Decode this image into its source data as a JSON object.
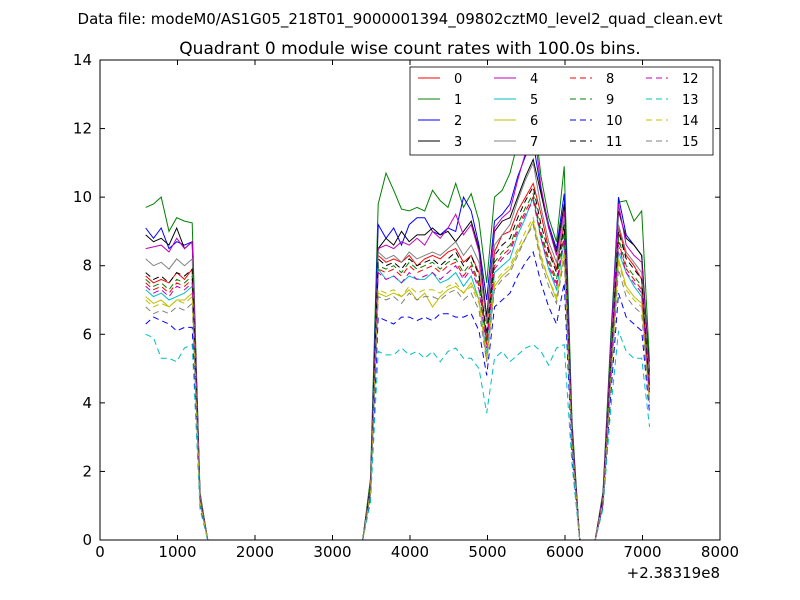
{
  "suptitle": "Data file: modeM0/AS1G05_218T01_9000001394_09802cztM0_level2_quad_clean.evt",
  "chart_data": {
    "type": "line",
    "title": "Quadrant 0 module wise count rates with 100.0s bins.",
    "xlabel": "",
    "ylabel": "",
    "x_offset_label": "+2.38319e8",
    "xlim": [
      0,
      8000
    ],
    "ylim": [
      0,
      14
    ],
    "xticks": [
      "0",
      "1000",
      "2000",
      "3000",
      "4000",
      "5000",
      "6000",
      "7000",
      "8000"
    ],
    "yticks": [
      "0",
      "2",
      "4",
      "6",
      "8",
      "10",
      "12",
      "14"
    ],
    "grid": false,
    "legend": "top-right",
    "x": [
      590,
      690,
      790,
      890,
      990,
      1090,
      1190,
      1290,
      1390,
      1490,
      1590,
      1690,
      1790,
      1890,
      1990,
      2090,
      2190,
      2290,
      2390,
      2490,
      2590,
      2690,
      2790,
      2890,
      2990,
      3090,
      3190,
      3290,
      3390,
      3490,
      3590,
      3690,
      3790,
      3890,
      3990,
      4090,
      4190,
      4290,
      4390,
      4490,
      4590,
      4690,
      4790,
      4890,
      4990,
      5090,
      5190,
      5290,
      5390,
      5490,
      5590,
      5690,
      5790,
      5890,
      5990,
      6090,
      6190,
      6290,
      6390,
      6490,
      6590,
      6690,
      6790,
      6890,
      6990,
      7090
    ],
    "series": [
      {
        "name": "0",
        "color": "#ff0000",
        "dashed": false,
        "values": [
          7.7,
          7.5,
          7.6,
          7.5,
          7.8,
          7.6,
          7.9,
          1.2,
          0,
          0,
          0,
          0,
          0,
          0,
          0,
          0,
          0,
          0,
          0,
          0,
          0,
          0,
          0,
          0,
          0,
          0,
          0,
          0,
          0,
          1.5,
          8.3,
          8.1,
          8.2,
          8.1,
          8.3,
          8.0,
          8.2,
          8.3,
          8.2,
          8.4,
          8.5,
          8.1,
          8.3,
          7.8,
          5.8,
          8.4,
          8.9,
          9.0,
          9.6,
          10.0,
          10.4,
          9.5,
          8.5,
          7.9,
          9.2,
          3.0,
          0,
          0,
          0,
          1.2,
          5.2,
          9.1,
          8.3,
          8.0,
          7.6,
          4.5
        ]
      },
      {
        "name": "1",
        "color": "#008000",
        "dashed": false,
        "values": [
          9.7,
          9.8,
          10.0,
          9.0,
          9.4,
          9.3,
          9.25,
          1.4,
          0,
          0,
          0,
          0,
          0,
          0,
          0,
          0,
          0,
          0,
          0,
          0,
          0,
          0,
          0,
          0,
          0,
          0,
          0,
          0,
          0,
          1.8,
          9.8,
          10.7,
          10.2,
          9.65,
          9.6,
          9.7,
          9.6,
          10.2,
          9.9,
          9.7,
          10.4,
          9.7,
          10.1,
          9.3,
          7.5,
          10.0,
          10.2,
          10.7,
          11.6,
          12.1,
          12.6,
          10.6,
          9.4,
          8.7,
          10.9,
          3.5,
          0,
          0,
          0,
          1.4,
          5.9,
          9.85,
          9.9,
          9.3,
          9.6,
          5.2
        ]
      },
      {
        "name": "2",
        "color": "#0000ff",
        "dashed": false,
        "values": [
          9.1,
          8.8,
          9.1,
          8.5,
          8.7,
          8.6,
          8.7,
          1.3,
          0,
          0,
          0,
          0,
          0,
          0,
          0,
          0,
          0,
          0,
          0,
          0,
          0,
          0,
          0,
          0,
          0,
          0,
          0,
          0,
          0,
          1.6,
          9.2,
          8.8,
          9.1,
          8.6,
          9.2,
          9.4,
          9.4,
          9.0,
          8.9,
          9.1,
          9.0,
          10.0,
          9.6,
          8.6,
          7.0,
          9.3,
          9.5,
          9.8,
          10.6,
          11.2,
          11.6,
          10.2,
          9.2,
          8.5,
          10.1,
          3.3,
          0,
          0,
          0,
          1.3,
          5.6,
          10.0,
          8.9,
          8.6,
          8.3,
          4.8
        ]
      },
      {
        "name": "3",
        "color": "#000000",
        "dashed": false,
        "values": [
          8.9,
          8.7,
          8.8,
          8.6,
          9.1,
          8.5,
          8.7,
          1.3,
          0,
          0,
          0,
          0,
          0,
          0,
          0,
          0,
          0,
          0,
          0,
          0,
          0,
          0,
          0,
          0,
          0,
          0,
          0,
          0,
          0,
          1.6,
          8.5,
          8.8,
          8.6,
          9.0,
          8.7,
          8.9,
          8.9,
          9.1,
          8.9,
          9.0,
          8.7,
          9.0,
          9.3,
          8.5,
          6.5,
          9.0,
          9.3,
          9.4,
          10.0,
          10.6,
          11.1,
          10.1,
          9.1,
          8.4,
          9.8,
          3.2,
          0,
          0,
          0,
          1.3,
          5.5,
          9.6,
          8.8,
          8.6,
          8.3,
          4.9
        ]
      },
      {
        "name": "4",
        "color": "#bf00bf",
        "dashed": false,
        "values": [
          8.5,
          8.55,
          8.6,
          8.4,
          8.8,
          8.5,
          8.7,
          1.3,
          0,
          0,
          0,
          0,
          0,
          0,
          0,
          0,
          0,
          0,
          0,
          0,
          0,
          0,
          0,
          0,
          0,
          0,
          0,
          0,
          0,
          1.6,
          8.5,
          8.6,
          8.5,
          8.7,
          8.6,
          8.8,
          8.6,
          9.0,
          8.8,
          9.1,
          9.5,
          8.9,
          9.2,
          8.4,
          6.3,
          9.1,
          9.4,
          9.6,
          10.5,
          11.3,
          12.2,
          10.3,
          9.1,
          8.3,
          9.6,
          3.2,
          0,
          0,
          0,
          1.3,
          5.5,
          9.8,
          8.6,
          8.3,
          8.1,
          4.7
        ]
      },
      {
        "name": "5",
        "color": "#00bfbf",
        "dashed": false,
        "values": [
          7.3,
          7.1,
          7.2,
          7.0,
          7.1,
          7.2,
          7.4,
          1.2,
          0,
          0,
          0,
          0,
          0,
          0,
          0,
          0,
          0,
          0,
          0,
          0,
          0,
          0,
          0,
          0,
          0,
          0,
          0,
          0,
          0,
          1.4,
          7.9,
          7.6,
          7.7,
          7.5,
          7.7,
          7.6,
          7.6,
          7.8,
          7.5,
          7.6,
          7.8,
          7.4,
          7.7,
          7.0,
          5.4,
          7.8,
          8.0,
          8.2,
          8.9,
          9.4,
          10.0,
          8.8,
          7.9,
          7.3,
          8.7,
          2.9,
          0,
          0,
          0,
          1.1,
          4.8,
          8.4,
          7.8,
          7.4,
          7.1,
          4.1
        ]
      },
      {
        "name": "6",
        "color": "#bfbf00",
        "dashed": false,
        "values": [
          7.1,
          6.9,
          7.0,
          6.8,
          7.0,
          7.0,
          7.2,
          1.1,
          0,
          0,
          0,
          0,
          0,
          0,
          0,
          0,
          0,
          0,
          0,
          0,
          0,
          0,
          0,
          0,
          0,
          0,
          0,
          0,
          0,
          1.4,
          7.2,
          7.1,
          7.2,
          7.1,
          7.3,
          7.0,
          7.2,
          6.8,
          7.1,
          7.3,
          7.4,
          7.2,
          7.5,
          7.0,
          5.2,
          7.4,
          7.7,
          7.9,
          8.4,
          8.8,
          9.3,
          8.2,
          7.6,
          7.0,
          8.4,
          2.8,
          0,
          0,
          0,
          1.1,
          4.6,
          8.2,
          7.4,
          7.1,
          6.9,
          4.0
        ]
      },
      {
        "name": "7",
        "color": "#808080",
        "dashed": false,
        "values": [
          8.2,
          8.0,
          8.1,
          7.9,
          8.2,
          8.0,
          8.2,
          1.3,
          0,
          0,
          0,
          0,
          0,
          0,
          0,
          0,
          0,
          0,
          0,
          0,
          0,
          0,
          0,
          0,
          0,
          0,
          0,
          0,
          0,
          1.5,
          8.4,
          8.2,
          8.3,
          8.1,
          8.4,
          8.2,
          8.3,
          8.4,
          8.3,
          8.5,
          8.7,
          8.3,
          8.6,
          8.1,
          6.3,
          8.6,
          8.9,
          9.2,
          9.9,
          10.5,
          11.0,
          9.7,
          8.7,
          8.1,
          9.4,
          3.1,
          0,
          0,
          0,
          1.2,
          5.2,
          9.2,
          8.4,
          8.1,
          7.8,
          4.6
        ]
      },
      {
        "name": "8",
        "color": "#ff0000",
        "dashed": true,
        "values": [
          7.5,
          7.3,
          7.4,
          7.2,
          7.5,
          7.4,
          7.6,
          1.2,
          0,
          0,
          0,
          0,
          0,
          0,
          0,
          0,
          0,
          0,
          0,
          0,
          0,
          0,
          0,
          0,
          0,
          0,
          0,
          0,
          0,
          1.4,
          7.9,
          7.8,
          7.9,
          7.7,
          8.0,
          7.8,
          7.9,
          8.0,
          7.8,
          8.0,
          8.1,
          7.7,
          8.0,
          7.4,
          5.7,
          8.0,
          8.3,
          8.5,
          9.1,
          9.6,
          10.0,
          8.9,
          8.1,
          7.5,
          8.9,
          2.9,
          0,
          0,
          0,
          1.1,
          5.0,
          8.7,
          7.9,
          7.6,
          7.3,
          4.3
        ]
      },
      {
        "name": "9",
        "color": "#008000",
        "dashed": true,
        "values": [
          7.6,
          7.4,
          7.5,
          7.3,
          7.6,
          7.5,
          7.7,
          1.2,
          0,
          0,
          0,
          0,
          0,
          0,
          0,
          0,
          0,
          0,
          0,
          0,
          0,
          0,
          0,
          0,
          0,
          0,
          0,
          0,
          0,
          1.5,
          8.0,
          7.9,
          8.0,
          7.8,
          8.1,
          7.9,
          8.0,
          8.1,
          7.9,
          8.1,
          8.2,
          7.8,
          8.1,
          7.5,
          5.8,
          8.1,
          8.4,
          8.6,
          9.2,
          9.7,
          10.1,
          9.0,
          8.2,
          7.6,
          9.0,
          3.0,
          0,
          0,
          0,
          1.1,
          5.0,
          8.8,
          8.0,
          7.7,
          7.4,
          4.3
        ]
      },
      {
        "name": "10",
        "color": "#0000ff",
        "dashed": true,
        "values": [
          6.3,
          6.5,
          6.4,
          6.3,
          6.1,
          6.2,
          6.2,
          1.0,
          0,
          0,
          0,
          0,
          0,
          0,
          0,
          0,
          0,
          0,
          0,
          0,
          0,
          0,
          0,
          0,
          0,
          0,
          0,
          0,
          0,
          1.2,
          6.5,
          6.4,
          6.3,
          6.5,
          6.5,
          6.4,
          6.5,
          6.4,
          6.6,
          6.6,
          6.5,
          6.5,
          6.6,
          6.1,
          4.8,
          6.8,
          7.0,
          7.2,
          7.7,
          8.1,
          8.4,
          7.5,
          6.8,
          6.3,
          7.5,
          2.5,
          0,
          0,
          0,
          1.0,
          4.2,
          7.2,
          6.5,
          6.3,
          6.1,
          3.7
        ]
      },
      {
        "name": "11",
        "color": "#000000",
        "dashed": true,
        "values": [
          7.8,
          7.6,
          7.7,
          7.5,
          7.8,
          7.7,
          7.9,
          1.2,
          0,
          0,
          0,
          0,
          0,
          0,
          0,
          0,
          0,
          0,
          0,
          0,
          0,
          0,
          0,
          0,
          0,
          0,
          0,
          0,
          0,
          1.5,
          8.2,
          8.0,
          8.1,
          7.9,
          8.2,
          8.0,
          8.1,
          8.2,
          8.0,
          8.2,
          8.4,
          8.0,
          8.3,
          7.7,
          6.0,
          8.3,
          8.6,
          8.8,
          9.4,
          9.9,
          10.3,
          9.2,
          8.4,
          7.8,
          9.2,
          3.0,
          0,
          0,
          0,
          1.2,
          5.1,
          9.0,
          8.2,
          7.9,
          7.6,
          4.4
        ]
      },
      {
        "name": "12",
        "color": "#bf00bf",
        "dashed": true,
        "values": [
          7.4,
          7.2,
          7.3,
          7.1,
          7.4,
          7.3,
          7.5,
          1.2,
          0,
          0,
          0,
          0,
          0,
          0,
          0,
          0,
          0,
          0,
          0,
          0,
          0,
          0,
          0,
          0,
          0,
          0,
          0,
          0,
          0,
          1.4,
          7.8,
          7.6,
          7.7,
          7.5,
          7.8,
          7.6,
          7.7,
          7.8,
          7.6,
          7.8,
          8.0,
          7.6,
          7.9,
          7.3,
          5.6,
          7.9,
          8.2,
          8.4,
          9.0,
          9.5,
          9.9,
          8.8,
          8.0,
          7.4,
          8.8,
          2.9,
          0,
          0,
          0,
          1.1,
          4.9,
          8.6,
          7.8,
          7.5,
          7.2,
          4.2
        ]
      },
      {
        "name": "13",
        "color": "#00bfbf",
        "dashed": true,
        "values": [
          6.0,
          5.9,
          5.3,
          5.3,
          5.2,
          5.6,
          5.7,
          0.9,
          0,
          0,
          0,
          0,
          0,
          0,
          0,
          0,
          0,
          0,
          0,
          0,
          0,
          0,
          0,
          0,
          0,
          0,
          0,
          0,
          0,
          1.1,
          5.5,
          5.4,
          5.4,
          5.6,
          5.4,
          5.5,
          5.3,
          5.5,
          5.2,
          5.5,
          5.6,
          5.3,
          5.3,
          5.0,
          3.7,
          5.3,
          5.5,
          5.2,
          5.4,
          5.6,
          5.7,
          5.5,
          5.1,
          5.6,
          5.7,
          2.2,
          0,
          0,
          0,
          0.9,
          3.8,
          6.1,
          5.5,
          5.3,
          5.3,
          3.3
        ]
      },
      {
        "name": "14",
        "color": "#bfbf00",
        "dashed": true,
        "values": [
          7.0,
          6.8,
          6.9,
          6.8,
          7.0,
          6.9,
          7.1,
          1.1,
          0,
          0,
          0,
          0,
          0,
          0,
          0,
          0,
          0,
          0,
          0,
          0,
          0,
          0,
          0,
          0,
          0,
          0,
          0,
          0,
          0,
          1.4,
          7.3,
          7.2,
          7.3,
          7.1,
          7.4,
          7.2,
          7.3,
          7.3,
          7.2,
          7.4,
          7.5,
          7.2,
          7.4,
          6.9,
          5.3,
          7.5,
          7.8,
          8.0,
          8.5,
          9.0,
          9.4,
          8.3,
          7.6,
          7.1,
          8.4,
          2.8,
          0,
          0,
          0,
          1.1,
          4.6,
          8.1,
          7.3,
          7.0,
          6.8,
          4.0
        ]
      },
      {
        "name": "15",
        "color": "#808080",
        "dashed": true,
        "values": [
          6.8,
          6.6,
          6.7,
          6.6,
          6.8,
          6.7,
          6.9,
          1.1,
          0,
          0,
          0,
          0,
          0,
          0,
          0,
          0,
          0,
          0,
          0,
          0,
          0,
          0,
          0,
          0,
          0,
          0,
          0,
          0,
          0,
          1.3,
          7.1,
          7.0,
          7.1,
          6.9,
          7.2,
          7.0,
          7.1,
          7.1,
          7.0,
          7.2,
          7.3,
          7.0,
          7.2,
          6.7,
          5.2,
          7.3,
          7.6,
          7.8,
          8.3,
          8.8,
          9.2,
          8.1,
          7.4,
          6.9,
          8.2,
          2.7,
          0,
          0,
          0,
          1.0,
          4.5,
          7.9,
          7.1,
          6.8,
          6.6,
          3.9
        ]
      }
    ]
  }
}
